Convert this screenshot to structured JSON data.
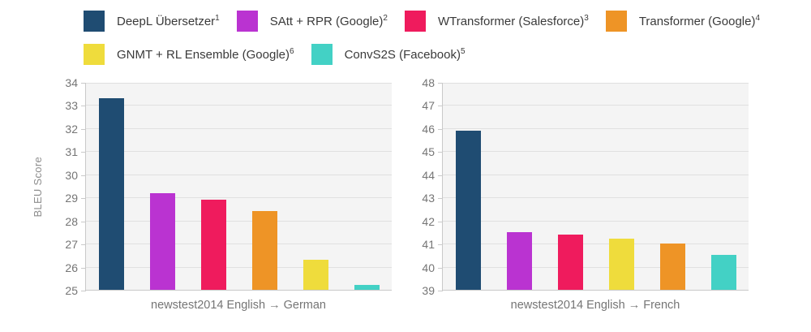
{
  "page": {
    "background": "#ffffff"
  },
  "legend": {
    "rows": [
      [
        {
          "key": "deepl",
          "label": "DeepL Übersetzer",
          "sup": "1"
        },
        {
          "key": "satt_rpr",
          "label": "SAtt + RPR (Google)",
          "sup": "2"
        },
        {
          "key": "wtransformer",
          "label": "WTransformer (Salesforce)",
          "sup": "3"
        },
        {
          "key": "transformer",
          "label": "Transformer (Google)",
          "sup": "4"
        }
      ],
      [
        {
          "key": "gnmt_rl",
          "label": "GNMT + RL Ensemble (Google)",
          "sup": "6"
        },
        {
          "key": "convs2s",
          "label": "ConvS2S (Facebook)",
          "sup": "5"
        }
      ]
    ]
  },
  "colors": {
    "deepl": "#1f4c72",
    "satt_rpr": "#ba33d1",
    "wtransformer": "#ef1b5d",
    "transformer": "#ee9426",
    "gnmt_rl": "#efdc3c",
    "convs2s": "#43d1c5",
    "plot_background": "#f4f4f4",
    "gridline": "#e0e0e0",
    "axis_line": "#c9c9c9",
    "tick_text": "#757575",
    "legend_text": "#3a3a3a",
    "axis_title_text": "#8d8d8d"
  },
  "chart_data": [
    {
      "type": "bar",
      "xlabel": "newstest2014 English → German",
      "ylabel": "BLEU Score",
      "ylim": [
        25,
        34
      ],
      "ytick_interval": 1,
      "grid": true,
      "legend_position": "top",
      "categories": [
        "DeepL Übersetzer",
        "SAtt + RPR (Google)",
        "WTransformer (Salesforce)",
        "Transformer (Google)",
        "GNMT + RL Ensemble (Google)",
        "ConvS2S (Facebook)"
      ],
      "series_keys": [
        "deepl",
        "satt_rpr",
        "wtransformer",
        "transformer",
        "gnmt_rl",
        "convs2s"
      ],
      "values": [
        33.3,
        29.2,
        28.9,
        28.4,
        26.3,
        25.2
      ]
    },
    {
      "type": "bar",
      "xlabel": "newstest2014 English → French",
      "ylabel": "BLEU Score",
      "ylim": [
        39,
        48
      ],
      "ytick_interval": 1,
      "grid": true,
      "legend_position": "top",
      "categories": [
        "DeepL Übersetzer",
        "SAtt + RPR (Google)",
        "WTransformer (Salesforce)",
        "GNMT + RL Ensemble (Google)",
        "Transformer (Google)",
        "ConvS2S (Facebook)"
      ],
      "series_keys": [
        "deepl",
        "satt_rpr",
        "wtransformer",
        "gnmt_rl",
        "transformer",
        "convs2s"
      ],
      "values": [
        45.9,
        41.5,
        41.4,
        41.2,
        41.0,
        40.5
      ]
    }
  ]
}
